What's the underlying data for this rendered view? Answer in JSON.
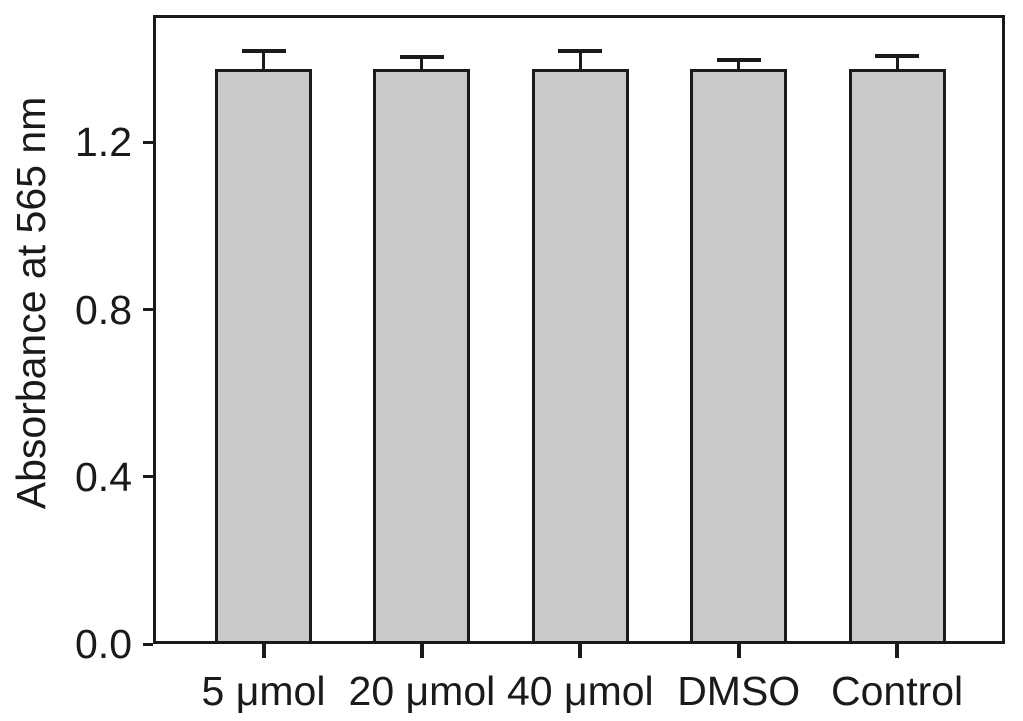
{
  "figure": {
    "background": "#ffffff",
    "line_color": "#1a1a1a",
    "text_color": "#1a1a1a"
  },
  "chart_data": {
    "type": "bar",
    "title": "",
    "xlabel": "",
    "ylabel": "Absorbance at 565 nm",
    "categories": [
      "5 μmol",
      "20 μmol",
      "40 μmol",
      "DMSO",
      "Control"
    ],
    "values": [
      1.375,
      1.375,
      1.375,
      1.375,
      1.375
    ],
    "errors": [
      0.043,
      0.029,
      0.043,
      0.021,
      0.031
    ],
    "error_direction": "upper-only",
    "ylim": [
      0,
      1.5
    ],
    "yticks": [
      0.0,
      0.4,
      0.8,
      1.2
    ],
    "ytick_labels": [
      "0.0",
      "0.4",
      "0.8",
      "1.2"
    ],
    "bar_fill": "#c9c9c9",
    "bar_edge": "#1a1a1a",
    "grid": false,
    "legend": null,
    "frame": "full-box"
  }
}
